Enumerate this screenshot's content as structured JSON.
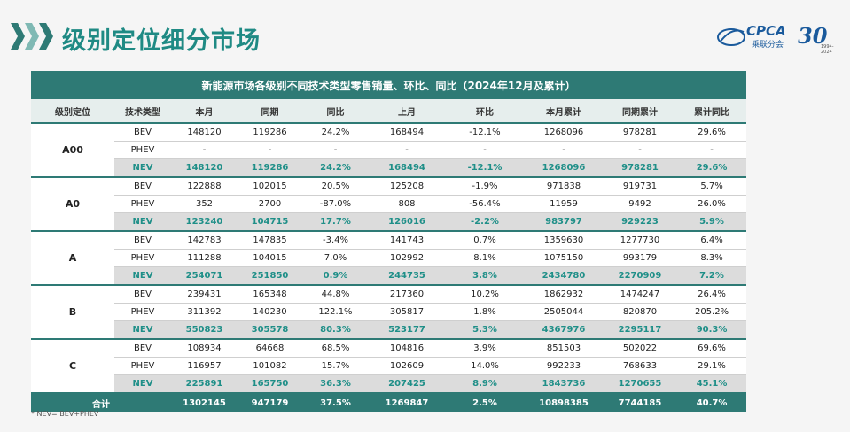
{
  "page": {
    "title": "级别定位细分市场",
    "logo_brand": "CPCA",
    "logo_sub": "乘联分会",
    "logo_anniv": "30",
    "logo_years": "1994-2024"
  },
  "table": {
    "caption": "新能源市场各级别不同技术类型零售销量、环比、同比（2024年12月及累计）",
    "headers": [
      "级别定位",
      "技术类型",
      "本月",
      "同期",
      "同比",
      "上月",
      "环比",
      "本月累计",
      "同期累计",
      "累计同比"
    ],
    "groups": [
      {
        "level": "A00",
        "rows": [
          [
            "BEV",
            "148120",
            "119286",
            "24.2%",
            "168494",
            "-12.1%",
            "1268096",
            "978281",
            "29.6%"
          ],
          [
            "PHEV",
            "-",
            "-",
            "-",
            "-",
            "-",
            "-",
            "-",
            "-"
          ],
          [
            "NEV",
            "148120",
            "119286",
            "24.2%",
            "168494",
            "-12.1%",
            "1268096",
            "978281",
            "29.6%"
          ]
        ]
      },
      {
        "level": "A0",
        "rows": [
          [
            "BEV",
            "122888",
            "102015",
            "20.5%",
            "125208",
            "-1.9%",
            "971838",
            "919731",
            "5.7%"
          ],
          [
            "PHEV",
            "352",
            "2700",
            "-87.0%",
            "808",
            "-56.4%",
            "11959",
            "9492",
            "26.0%"
          ],
          [
            "NEV",
            "123240",
            "104715",
            "17.7%",
            "126016",
            "-2.2%",
            "983797",
            "929223",
            "5.9%"
          ]
        ]
      },
      {
        "level": "A",
        "rows": [
          [
            "BEV",
            "142783",
            "147835",
            "-3.4%",
            "141743",
            "0.7%",
            "1359630",
            "1277730",
            "6.4%"
          ],
          [
            "PHEV",
            "111288",
            "104015",
            "7.0%",
            "102992",
            "8.1%",
            "1075150",
            "993179",
            "8.3%"
          ],
          [
            "NEV",
            "254071",
            "251850",
            "0.9%",
            "244735",
            "3.8%",
            "2434780",
            "2270909",
            "7.2%"
          ]
        ]
      },
      {
        "level": "B",
        "rows": [
          [
            "BEV",
            "239431",
            "165348",
            "44.8%",
            "217360",
            "10.2%",
            "1862932",
            "1474247",
            "26.4%"
          ],
          [
            "PHEV",
            "311392",
            "140230",
            "122.1%",
            "305817",
            "1.8%",
            "2505044",
            "820870",
            "205.2%"
          ],
          [
            "NEV",
            "550823",
            "305578",
            "80.3%",
            "523177",
            "5.3%",
            "4367976",
            "2295117",
            "90.3%"
          ]
        ]
      },
      {
        "level": "C",
        "rows": [
          [
            "BEV",
            "108934",
            "64668",
            "68.5%",
            "104816",
            "3.9%",
            "851503",
            "502022",
            "69.6%"
          ],
          [
            "PHEV",
            "116957",
            "101082",
            "15.7%",
            "102609",
            "14.0%",
            "992233",
            "768633",
            "29.1%"
          ],
          [
            "NEV",
            "225891",
            "165750",
            "36.3%",
            "207425",
            "8.9%",
            "1843736",
            "1270655",
            "45.1%"
          ]
        ]
      }
    ],
    "total": [
      "合计",
      "1302145",
      "947179",
      "37.5%",
      "1269847",
      "2.5%",
      "10898385",
      "7744185",
      "40.7%"
    ]
  },
  "note": "* NEV= BEV+PHEV",
  "colors": {
    "accent": "#2e7a75",
    "nev_text": "#1f8f88",
    "title": "#1f8a84",
    "logo": "#1a5a9c"
  }
}
